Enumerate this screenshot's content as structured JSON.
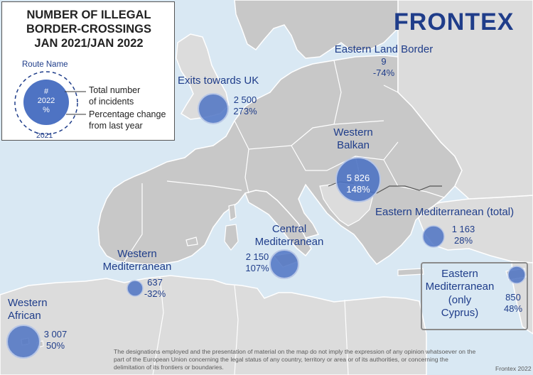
{
  "legend": {
    "title_lines": [
      "NUMBER OF ILLEGAL",
      "BORDER-CROSSINGS",
      "JAN 2021/JAN 2022"
    ],
    "route_name": "Route Name",
    "symbol_hash": "#",
    "symbol_year": "2022",
    "symbol_pct": "%",
    "total_line1": "Total number",
    "total_line2": "of incidents",
    "pct_line1": "Percentage change",
    "pct_line2": "from last year",
    "year_prev": "2021"
  },
  "logo": "FRONTEX",
  "routes": [
    {
      "id": "eastern-land-border",
      "name_lines": [
        "Eastern Land Border"
      ],
      "value": "9",
      "change": "-74%"
    },
    {
      "id": "exits-towards-uk",
      "name_lines": [
        "Exits towards UK"
      ],
      "value": "2 500",
      "change": "273%"
    },
    {
      "id": "western-balkan",
      "name_lines": [
        "Western",
        "Balkan"
      ],
      "value": "5 826",
      "change": "148%"
    },
    {
      "id": "eastern-mediterranean",
      "name_lines": [
        "Eastern Mediterranean (total)"
      ],
      "value": "1 163",
      "change": "28%"
    },
    {
      "id": "central-mediterranean",
      "name_lines": [
        "Central",
        "Mediterranean"
      ],
      "value": "2 150",
      "change": "107%"
    },
    {
      "id": "western-mediterranean",
      "name_lines": [
        "Western",
        "Mediterranean"
      ],
      "value": "637",
      "change": "-32%"
    },
    {
      "id": "western-african",
      "name_lines": [
        "Western",
        "African"
      ],
      "value": "3 007",
      "change": "50%"
    },
    {
      "id": "eastern-mediterranean-cyprus",
      "name_lines": [
        "Eastern",
        "Mediterranean",
        "(only",
        "Cyprus)"
      ],
      "value": "850",
      "change": "48%"
    }
  ],
  "disclaimer": "The designations employed and the presentation of material on the map do not imply the expression of any opinion whatsoever on the part of the European Union concerning the legal status of any country, territory or area or of its authorities, or concerning the delimitation of its frontiers or boundaries.",
  "credit": "Frontex 2022",
  "colors": {
    "sea": "#d9e8f3",
    "land": "#c8c8c8",
    "non_eu_land": "#dcdcdc",
    "bubble": "#4e73c3",
    "text": "#1f3d8a"
  }
}
